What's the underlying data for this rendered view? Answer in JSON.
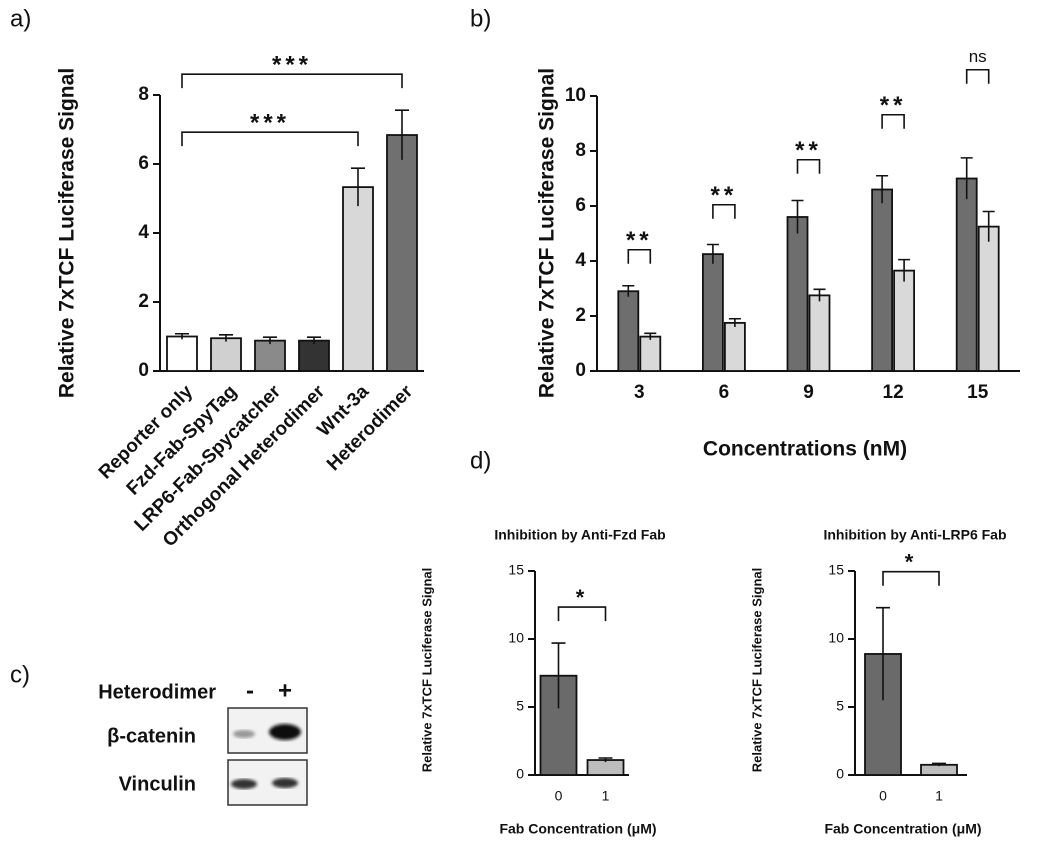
{
  "chart_data": [
    {
      "type": "bar",
      "panel": "a)",
      "y_label": "Relative 7xTCF Luciferase Signal",
      "categories": [
        "Reporter only",
        "Fzd-Fab-SpyTag",
        "LRP6-Fab-Spycatcher",
        "Orthogonal Heterodimer",
        "Wnt-3a",
        "Heterodimer"
      ],
      "values": [
        1.0,
        0.95,
        0.88,
        0.88,
        5.33,
        6.84
      ],
      "errors": [
        0.08,
        0.1,
        0.1,
        0.1,
        0.55,
        0.72
      ],
      "colors": [
        "#ffffff",
        "#d0d0d0",
        "#8a8a8a",
        "#333333",
        "#d8d8d8",
        "#707070"
      ],
      "ylim": [
        0,
        8
      ],
      "yticks": [
        0,
        2,
        4,
        6,
        8
      ],
      "annotations": [
        {
          "text": "***",
          "from": 0,
          "to": 4
        },
        {
          "text": "***",
          "from": 0,
          "to": 5
        }
      ]
    },
    {
      "type": "grouped-bar",
      "panel": "b)",
      "y_label": "Relative 7xTCF Luciferase Signal",
      "x_label": "Concentrations (nM)",
      "categories": [
        "3",
        "6",
        "9",
        "12",
        "15"
      ],
      "series": [
        {
          "color": "#6e6e6e",
          "values": [
            2.9,
            4.25,
            5.6,
            6.6,
            7.0
          ],
          "errors": [
            0.2,
            0.35,
            0.6,
            0.5,
            0.75
          ]
        },
        {
          "color": "#d9d9d9",
          "values": [
            1.25,
            1.75,
            2.75,
            3.65,
            5.25
          ],
          "errors": [
            0.12,
            0.15,
            0.22,
            0.4,
            0.55
          ]
        }
      ],
      "ylim": [
        0,
        10
      ],
      "yticks": [
        0,
        2,
        4,
        6,
        8,
        10
      ],
      "annotations": [
        {
          "text": "**",
          "at": 0
        },
        {
          "text": "**",
          "at": 1
        },
        {
          "text": "**",
          "at": 2
        },
        {
          "text": "**",
          "at": 3
        },
        {
          "text": "ns",
          "at": 4
        }
      ]
    },
    {
      "type": "bar",
      "panel": "d)",
      "title": "Inhibition by Anti-Fzd Fab",
      "y_label": "Relative 7xTCF Luciferase Signal",
      "x_label": "Fab Concentration (μM)",
      "categories": [
        "0",
        "1"
      ],
      "values": [
        7.3,
        1.1
      ],
      "errors": [
        2.4,
        0.15
      ],
      "colors": [
        "#6a6a6a",
        "#bdbdbd"
      ],
      "ylim": [
        0,
        15
      ],
      "yticks": [
        0,
        5,
        10,
        15
      ],
      "annotations": [
        {
          "text": "*",
          "from": 0,
          "to": 1
        }
      ]
    },
    {
      "type": "bar",
      "title": "Inhibition by Anti-LRP6 Fab",
      "y_label": "Relative 7xTCF Luciferase Signal",
      "x_label": "Fab Concentration (μM)",
      "categories": [
        "0",
        "1"
      ],
      "values": [
        8.9,
        0.75
      ],
      "errors": [
        3.4,
        0.1
      ],
      "colors": [
        "#6a6a6a",
        "#bdbdbd"
      ],
      "ylim": [
        0,
        15
      ],
      "yticks": [
        0,
        5,
        10,
        15
      ],
      "annotations": [
        {
          "text": "*",
          "from": 0,
          "to": 1
        }
      ]
    }
  ],
  "blot": {
    "panel": "c)",
    "condition": "Heterodimer",
    "lanes": [
      "-",
      "+"
    ],
    "rows": [
      "β-catenin",
      "Vinculin"
    ]
  }
}
